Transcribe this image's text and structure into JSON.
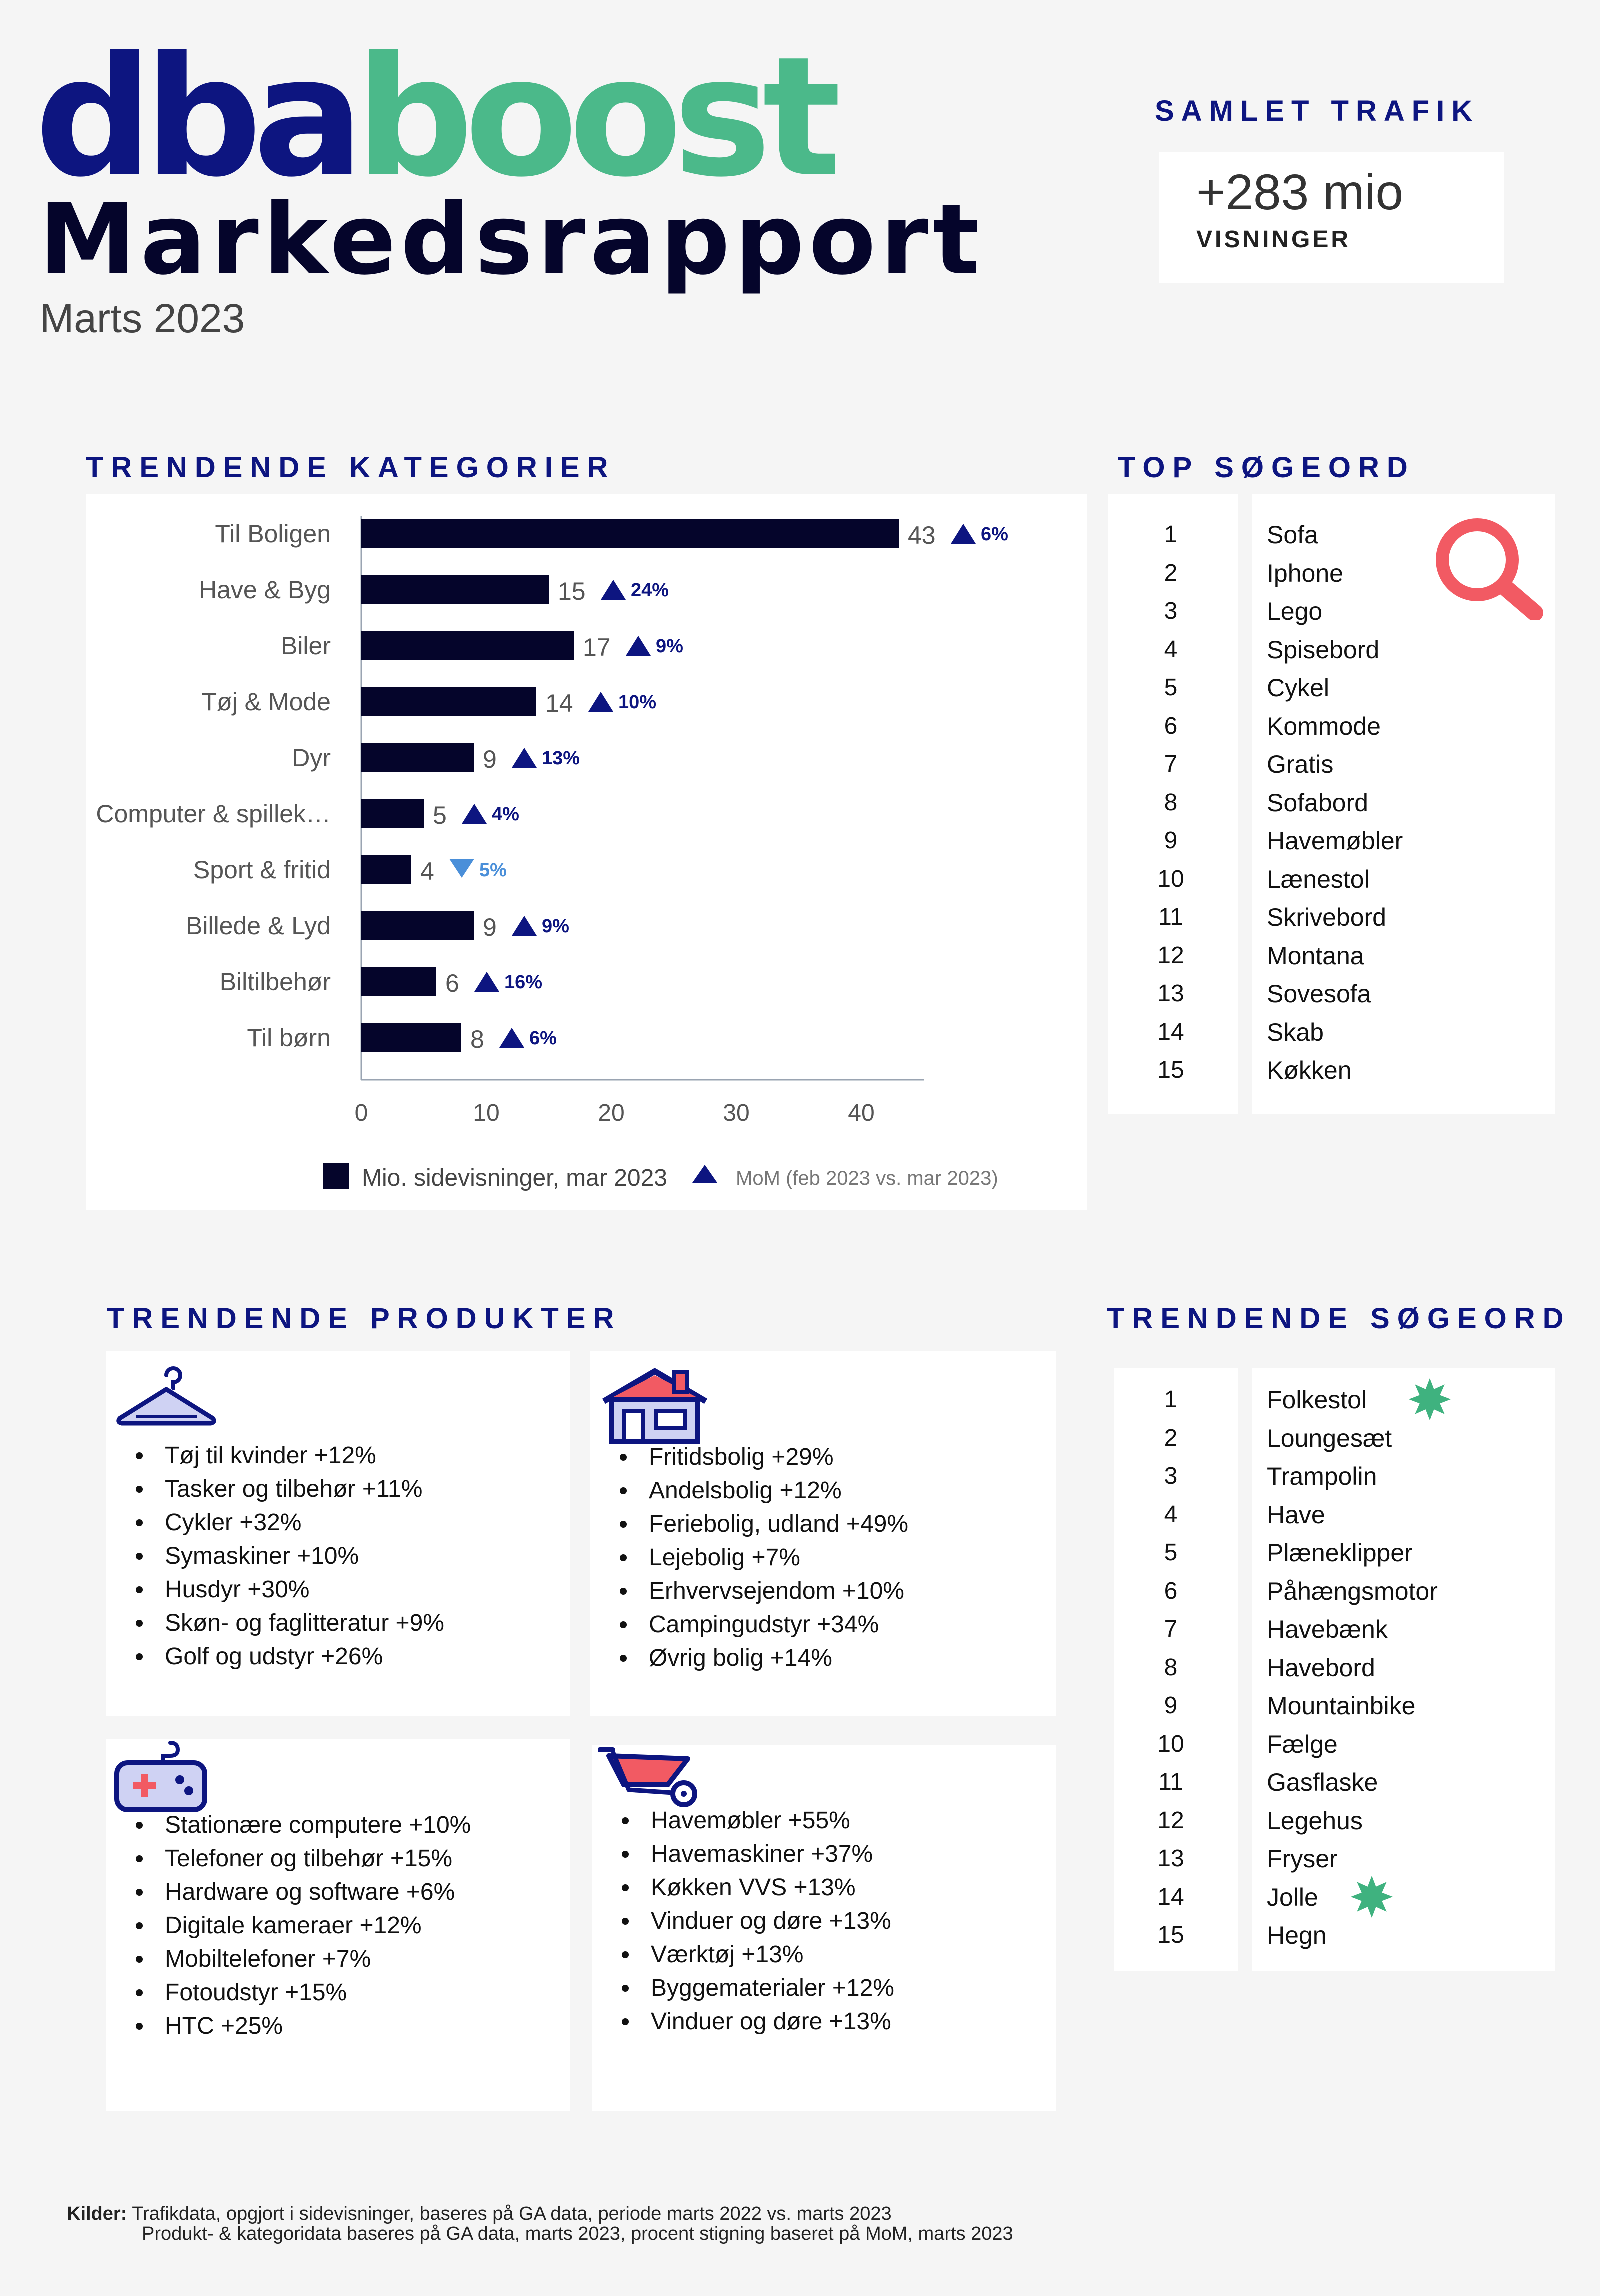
{
  "brand": {
    "logo_part1": "dba",
    "logo_part2": "boost",
    "primary_color": "#0d1580",
    "accent_color": "#4bb98a"
  },
  "title": "Markedsrapport",
  "subtitle": "Marts 2023",
  "traffic": {
    "heading": "SAMLET TRAFIK",
    "value": "+283 mio",
    "label": "VISNINGER"
  },
  "categories": {
    "heading": "TRENDENDE KATEGORIER"
  },
  "chart_data": {
    "type": "bar",
    "orientation": "horizontal",
    "categories": [
      "Til Boligen",
      "Have & Byg",
      "Biler",
      "Tøj & Mode",
      "Dyr",
      "Computer & spillek…",
      "Sport & fritid",
      "Billede & Lyd",
      "Biltilbehør",
      "Til børn"
    ],
    "values": [
      43,
      15,
      17,
      14,
      9,
      5,
      4,
      9,
      6,
      8
    ],
    "mom": [
      "6%",
      "24%",
      "9%",
      "10%",
      "13%",
      "4%",
      "5%",
      "9%",
      "16%",
      "6%"
    ],
    "mom_direction": [
      "up",
      "up",
      "up",
      "up",
      "up",
      "up",
      "down",
      "up",
      "up",
      "up"
    ],
    "xlim": [
      0,
      45
    ],
    "xticks": [
      0,
      10,
      20,
      30,
      40
    ],
    "bar_color": "#05052b",
    "up_color": "#0d1580",
    "down_color": "#4a8fd9",
    "legend": {
      "series": "Mio. sidevisninger, mar 2023",
      "mom": "MoM (feb 2023 vs. mar 2023)",
      "placement": "bottom"
    }
  },
  "top_search": {
    "heading": "TOP SØGEORD",
    "icon": "magnifier-icon",
    "icon_color": "#f25a63",
    "items": [
      {
        "rank": "1",
        "term": "Sofa"
      },
      {
        "rank": "2",
        "term": "Iphone"
      },
      {
        "rank": "3",
        "term": "Lego"
      },
      {
        "rank": "4",
        "term": "Spisebord"
      },
      {
        "rank": "5",
        "term": "Cykel"
      },
      {
        "rank": "6",
        "term": "Kommode"
      },
      {
        "rank": "7",
        "term": "Gratis"
      },
      {
        "rank": "8",
        "term": "Sofabord"
      },
      {
        "rank": "9",
        "term": "Havemøbler"
      },
      {
        "rank": "10",
        "term": "Lænestol"
      },
      {
        "rank": "11",
        "term": "Skrivebord"
      },
      {
        "rank": "12",
        "term": "Montana"
      },
      {
        "rank": "13",
        "term": "Sovesofa"
      },
      {
        "rank": "14",
        "term": "Skab"
      },
      {
        "rank": "15",
        "term": "Køkken"
      }
    ]
  },
  "products": {
    "heading": "TRENDENDE PRODUKTER",
    "cards": [
      {
        "icon": "hanger-icon",
        "items": [
          "Tøj til kvinder +12%",
          "Tasker og tilbehør +11%",
          "Cykler +32%",
          "Symaskiner +10%",
          "Husdyr +30%",
          "Skøn- og faglitteratur +9%",
          "Golf og udstyr +26%"
        ]
      },
      {
        "icon": "house-icon",
        "items": [
          "Fritidsbolig +29%",
          "Andelsbolig +12%",
          "Feriebolig, udland +49%",
          "Lejebolig +7%",
          "Erhvervsejendom +10%",
          "Campingudstyr +34%",
          "Øvrig bolig +14%"
        ]
      },
      {
        "icon": "gamepad-icon",
        "items": [
          "Stationære computere +10%",
          "Telefoner og tilbehør +15%",
          "Hardware og software +6%",
          "Digitale kameraer +12%",
          "Mobiltelefoner +7%",
          "Fotoudstyr +15%",
          "HTC +25%"
        ]
      },
      {
        "icon": "wheelbarrow-icon",
        "items": [
          "Havemøbler +55%",
          "Havemaskiner +37%",
          "Køkken VVS +13%",
          "Vinduer og døre +13%",
          "Værktøj +13%",
          "Byggematerialer +12%",
          "Vinduer og døre +13%"
        ]
      }
    ]
  },
  "trending_search": {
    "heading": "TRENDENDE SØGEORD",
    "star_color": "#3fb27f",
    "items": [
      {
        "rank": "1",
        "term": "Folkestol",
        "star": true
      },
      {
        "rank": "2",
        "term": "Loungesæt"
      },
      {
        "rank": "3",
        "term": "Trampolin"
      },
      {
        "rank": "4",
        "term": "Have"
      },
      {
        "rank": "5",
        "term": "Plæneklipper"
      },
      {
        "rank": "6",
        "term": "Påhængsmotor"
      },
      {
        "rank": "7",
        "term": "Havebænk"
      },
      {
        "rank": "8",
        "term": "Havebord"
      },
      {
        "rank": "9",
        "term": "Mountainbike"
      },
      {
        "rank": "10",
        "term": "Fælge"
      },
      {
        "rank": "11",
        "term": "Gasflaske"
      },
      {
        "rank": "12",
        "term": "Legehus"
      },
      {
        "rank": "13",
        "term": "Fryser"
      },
      {
        "rank": "14",
        "term": "Jolle",
        "star": true
      },
      {
        "rank": "15",
        "term": "Hegn"
      }
    ]
  },
  "sources": {
    "label": "Kilder:",
    "line1": "Trafikdata, opgjort i sidevisninger, baseres på GA data, periode marts 2022 vs. marts 2023",
    "line2": "Produkt- & kategoridata baseres på GA data, marts 2023, procent stigning baseret på MoM, marts 2023"
  }
}
